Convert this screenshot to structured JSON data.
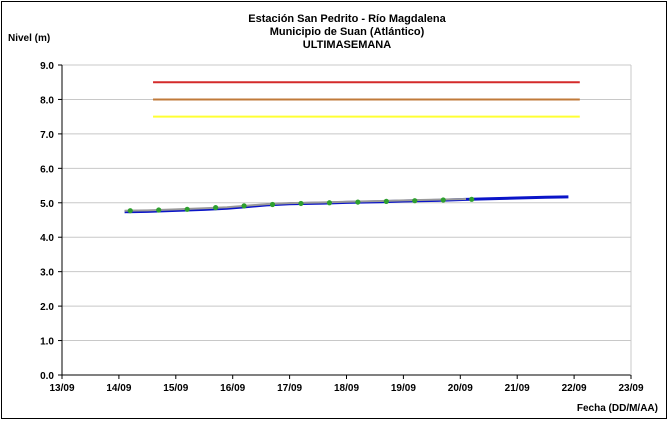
{
  "chart_data": {
    "type": "line",
    "title_lines": [
      "Estación San Pedrito - Río Magdalena",
      "Municipio de Suan (Atlántico)",
      "ULTIMASEMANA"
    ],
    "ylabel": "Nivel (m)",
    "xlabel": "Fecha (DD/M/AA)",
    "x_ticks": [
      "13/09",
      "14/09",
      "15/09",
      "16/09",
      "17/09",
      "18/09",
      "19/09",
      "20/09",
      "21/09",
      "22/09",
      "23/09"
    ],
    "y_ticks": [
      "0.0",
      "1.0",
      "2.0",
      "3.0",
      "4.0",
      "5.0",
      "6.0",
      "7.0",
      "8.0",
      "9.0"
    ],
    "xlim": [
      0,
      10
    ],
    "ylim": [
      0,
      9
    ],
    "grid": "horizontal",
    "thresholds": [
      {
        "value": 8.5,
        "color": "#d42a2a"
      },
      {
        "value": 8.0,
        "color": "#c07a3a"
      },
      {
        "value": 7.5,
        "color": "#ffff33"
      }
    ],
    "series": [
      {
        "style": "line",
        "color": "#0a14c8",
        "x": [
          1.1,
          1.5,
          2.0,
          2.5,
          2.9,
          3.2,
          3.6,
          4.0,
          4.6,
          5.0,
          5.6,
          6.0,
          6.6,
          7.1,
          7.6,
          8.0,
          8.5,
          8.9
        ],
        "y": [
          4.74,
          4.75,
          4.78,
          4.81,
          4.84,
          4.88,
          4.94,
          4.97,
          4.99,
          5.01,
          5.03,
          5.05,
          5.07,
          5.1,
          5.12,
          5.14,
          5.16,
          5.17
        ]
      },
      {
        "style": "line",
        "color": "#9a9a9a",
        "x": [
          1.1,
          1.5,
          2.0,
          2.5,
          2.9,
          3.2,
          3.6,
          4.0,
          4.6,
          5.0,
          5.6,
          6.0,
          6.6,
          7.1
        ],
        "y": [
          4.77,
          4.78,
          4.81,
          4.84,
          4.87,
          4.91,
          4.96,
          4.99,
          5.01,
          5.03,
          5.05,
          5.07,
          5.09,
          5.11
        ]
      },
      {
        "style": "markers",
        "color": "#2ea02e",
        "x": [
          1.2,
          1.7,
          2.2,
          2.7,
          3.2,
          3.7,
          4.2,
          4.7,
          5.2,
          5.7,
          6.2,
          6.7,
          7.2
        ],
        "y": [
          4.77,
          4.79,
          4.81,
          4.86,
          4.91,
          4.95,
          4.98,
          5.0,
          5.02,
          5.04,
          5.06,
          5.08,
          5.1
        ]
      }
    ]
  }
}
